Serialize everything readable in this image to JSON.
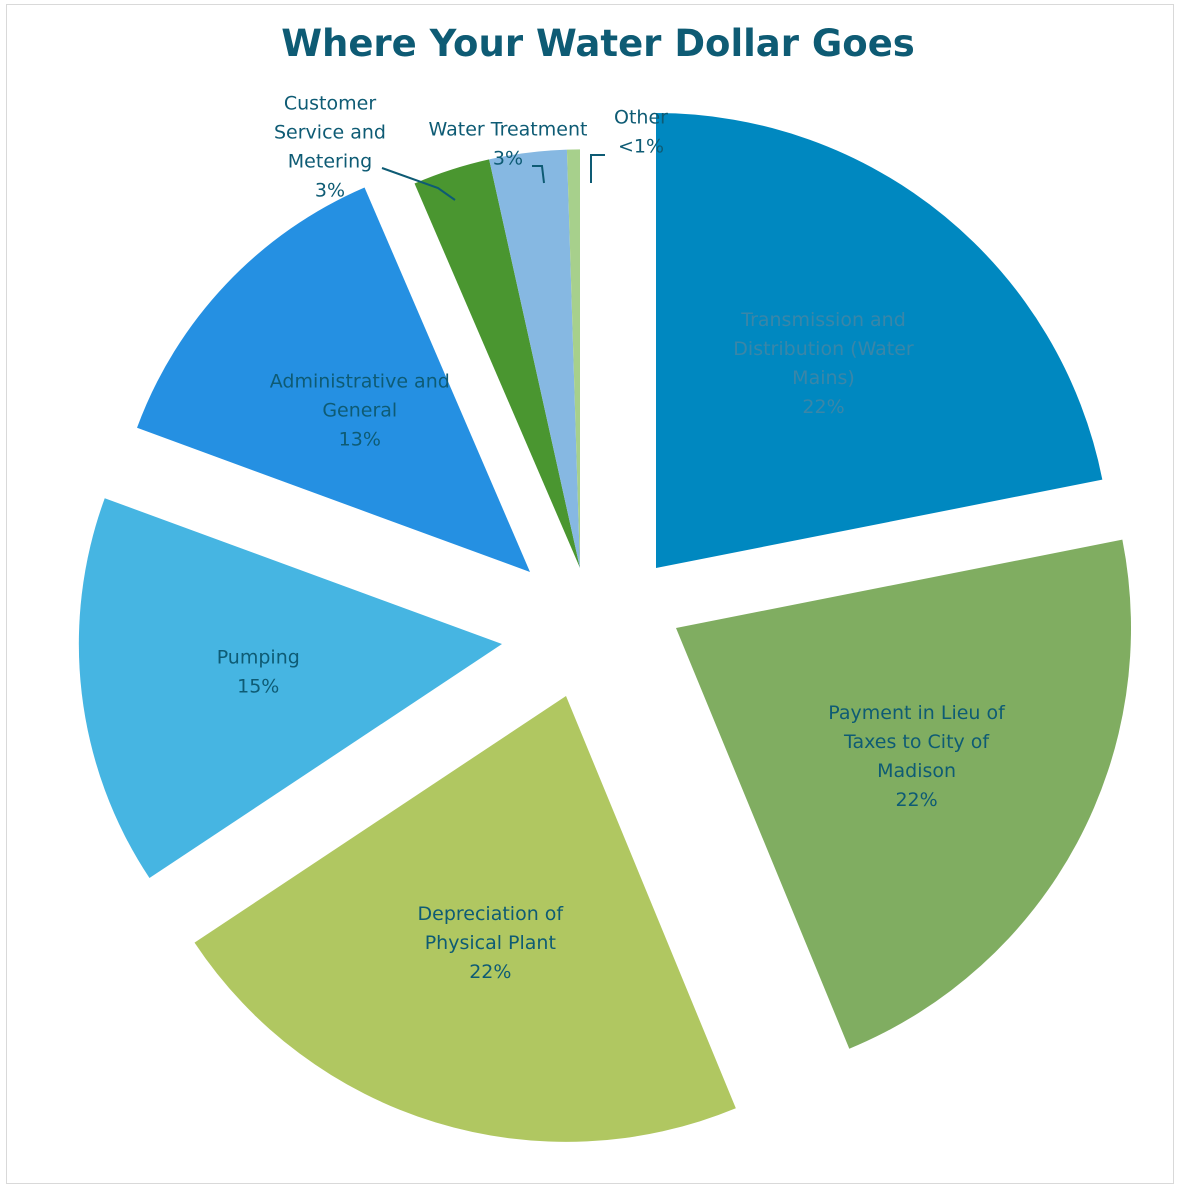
{
  "colors": {
    "title": "#0e5b74",
    "label_dark": "#0e5b74",
    "label_light": "#3a86a8",
    "leader_line": "#0e5b74"
  },
  "chart_data": {
    "type": "pie",
    "title": "Where Your Water Dollar Goes",
    "slices": [
      {
        "label_lines": [
          "Transmission and",
          "Distribution (Water",
          "Mains)"
        ],
        "value_label": "22%",
        "value": 22,
        "color": "#0088c0"
      },
      {
        "label_lines": [
          "Payment in Lieu of",
          "Taxes to City of",
          "Madison"
        ],
        "value_label": "22%",
        "value": 22,
        "color": "#80ad61"
      },
      {
        "label_lines": [
          "Depreciation of",
          "Physical Plant"
        ],
        "value_label": "22%",
        "value": 22,
        "color": "#b0c761"
      },
      {
        "label_lines": [
          "Pumping"
        ],
        "value_label": "15%",
        "value": 15,
        "color": "#46b5e2"
      },
      {
        "label_lines": [
          "Administrative and",
          "General"
        ],
        "value_label": "13%",
        "value": 13,
        "color": "#2590e2"
      },
      {
        "label_lines": [
          "Customer",
          "Service and",
          "Metering"
        ],
        "value_label": "3%",
        "value": 3,
        "color": "#4a9630"
      },
      {
        "label_lines": [
          "Water Treatment"
        ],
        "value_label": "3%",
        "value": 3,
        "color": "#86b8e2"
      },
      {
        "label_lines": [
          "Other"
        ],
        "value_label": "<1%",
        "value": 0.5,
        "color": "#a7d08c"
      }
    ]
  }
}
